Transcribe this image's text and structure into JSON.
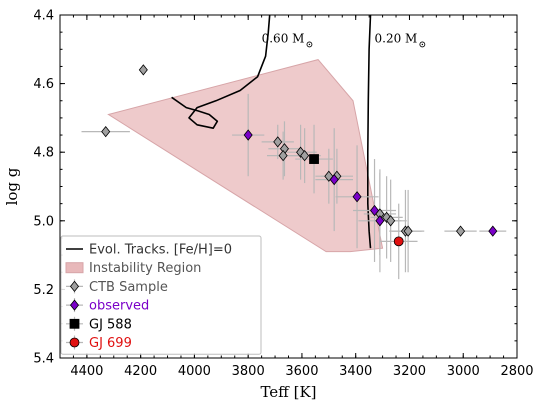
{
  "chart_data": {
    "type": "scatter",
    "xlabel": "Teff [K]",
    "ylabel": "log g",
    "xlim": [
      4500,
      2800
    ],
    "ylim": [
      5.4,
      4.4
    ],
    "x_ticks": [
      4400,
      4200,
      4000,
      3800,
      3600,
      3400,
      3200,
      3000,
      2800
    ],
    "y_ticks": [
      4.4,
      4.6,
      4.8,
      5.0,
      5.2,
      5.4
    ],
    "x_tick_labels": [
      "4400",
      "4200",
      "4000",
      "3800",
      "3600",
      "3400",
      "3200",
      "3000",
      "2800"
    ],
    "y_tick_labels": [
      "4.4",
      "4.6",
      "4.8",
      "5.0",
      "5.2",
      "5.4"
    ],
    "grid": false,
    "legend_position": "bottom-left",
    "track_labels": [
      {
        "text": "0.60 M",
        "x": 3750,
        "y": 4.48
      },
      {
        "text": "0.20 M",
        "x": 3330,
        "y": 4.48
      }
    ],
    "series": [
      {
        "name": "Evol. Tracks. [Fe/H]=0",
        "kind": "line",
        "color": "#000000",
        "lines": [
          [
            [
              3720,
              4.4
            ],
            [
              3725,
              4.45
            ],
            [
              3735,
              4.52
            ],
            [
              3765,
              4.58
            ],
            [
              3830,
              4.62
            ],
            [
              3920,
              4.65
            ],
            [
              3990,
              4.67
            ],
            [
              4020,
              4.7
            ],
            [
              3990,
              4.72
            ],
            [
              3930,
              4.73
            ],
            [
              3915,
              4.71
            ],
            [
              3945,
              4.69
            ],
            [
              3985,
              4.68
            ],
            [
              4030,
              4.67
            ],
            [
              4085,
              4.64
            ]
          ],
          [
            [
              3345,
              4.4
            ],
            [
              3350,
              4.5
            ],
            [
              3353,
              4.65
            ],
            [
              3355,
              4.8
            ],
            [
              3355,
              4.95
            ],
            [
              3350,
              5.03
            ],
            [
              3345,
              5.08
            ]
          ]
        ]
      },
      {
        "name": "Instability Region",
        "kind": "polygon",
        "color": "#e8b8ba",
        "points": [
          [
            4320,
            4.69
          ],
          [
            3540,
            4.53
          ],
          [
            3410,
            4.65
          ],
          [
            3300,
            5.08
          ],
          [
            3420,
            5.09
          ],
          [
            3510,
            5.09
          ]
        ]
      },
      {
        "name": "CTB Sample",
        "kind": "points",
        "color": "#a0a0a0",
        "points": [
          {
            "x": 4190,
            "y": 4.56,
            "xerr": 0,
            "yerr": 0
          },
          {
            "x": 4330,
            "y": 4.74,
            "xerr": 90,
            "yerr": 0
          },
          {
            "x": 3690,
            "y": 4.77,
            "xerr": 60,
            "yerr": 0.05
          },
          {
            "x": 3665,
            "y": 4.79,
            "xerr": 60,
            "yerr": 0.08
          },
          {
            "x": 3670,
            "y": 4.81,
            "xerr": 60,
            "yerr": 0.07
          },
          {
            "x": 3605,
            "y": 4.8,
            "xerr": 60,
            "yerr": 0.08
          },
          {
            "x": 3590,
            "y": 4.81,
            "xerr": 60,
            "yerr": 0.08
          },
          {
            "x": 3500,
            "y": 4.87,
            "xerr": 50,
            "yerr": 0.08
          },
          {
            "x": 3470,
            "y": 4.87,
            "xerr": 60,
            "yerr": 0.08
          },
          {
            "x": 3310,
            "y": 4.98,
            "xerr": 60,
            "yerr": 0.12
          },
          {
            "x": 3285,
            "y": 4.99,
            "xerr": 60,
            "yerr": 0.12
          },
          {
            "x": 3270,
            "y": 5.0,
            "xerr": 60,
            "yerr": 0.12
          },
          {
            "x": 3215,
            "y": 5.03,
            "xerr": 60,
            "yerr": 0.12
          },
          {
            "x": 3205,
            "y": 5.03,
            "xerr": 60,
            "yerr": 0.12
          },
          {
            "x": 3010,
            "y": 5.03,
            "xerr": 60,
            "yerr": 0
          }
        ]
      },
      {
        "name": "observed",
        "kind": "points",
        "color": "#7a00c8",
        "points": [
          {
            "x": 3800,
            "y": 4.75,
            "xerr": 60,
            "yerr": 0.12
          },
          {
            "x": 3480,
            "y": 4.88,
            "xerr": 70,
            "yerr": 0.15
          },
          {
            "x": 3395,
            "y": 4.93,
            "xerr": 80,
            "yerr": 0.15
          },
          {
            "x": 3330,
            "y": 4.97,
            "xerr": 80,
            "yerr": 0.15
          },
          {
            "x": 3310,
            "y": 5.0,
            "xerr": 80,
            "yerr": 0.15
          },
          {
            "x": 2890,
            "y": 5.03,
            "xerr": 50,
            "yerr": 0
          }
        ]
      },
      {
        "name": "GJ 588",
        "kind": "points",
        "color": "#000000",
        "marker": "square",
        "points": [
          {
            "x": 3555,
            "y": 4.82,
            "xerr": 70,
            "yerr": 0.1
          }
        ]
      },
      {
        "name": "GJ 699",
        "kind": "points",
        "color": "#e01010",
        "marker": "circle",
        "points": [
          {
            "x": 3240,
            "y": 5.06,
            "xerr": 70,
            "yerr": 0.11
          }
        ]
      }
    ],
    "legend": [
      {
        "label": "Evol. Tracks. [Fe/H]=0",
        "color": "#333333",
        "marker": "line"
      },
      {
        "label": "Instability Region",
        "color": "#555555",
        "marker": "patch"
      },
      {
        "label": "CTB Sample",
        "color": "#555555",
        "marker": "diamond-gray"
      },
      {
        "label": "observed",
        "color": "#7a00c8",
        "marker": "diamond-purple"
      },
      {
        "label": "GJ 588",
        "color": "#000000",
        "marker": "square"
      },
      {
        "label": "GJ 699",
        "color": "#e01010",
        "marker": "circle"
      }
    ]
  }
}
